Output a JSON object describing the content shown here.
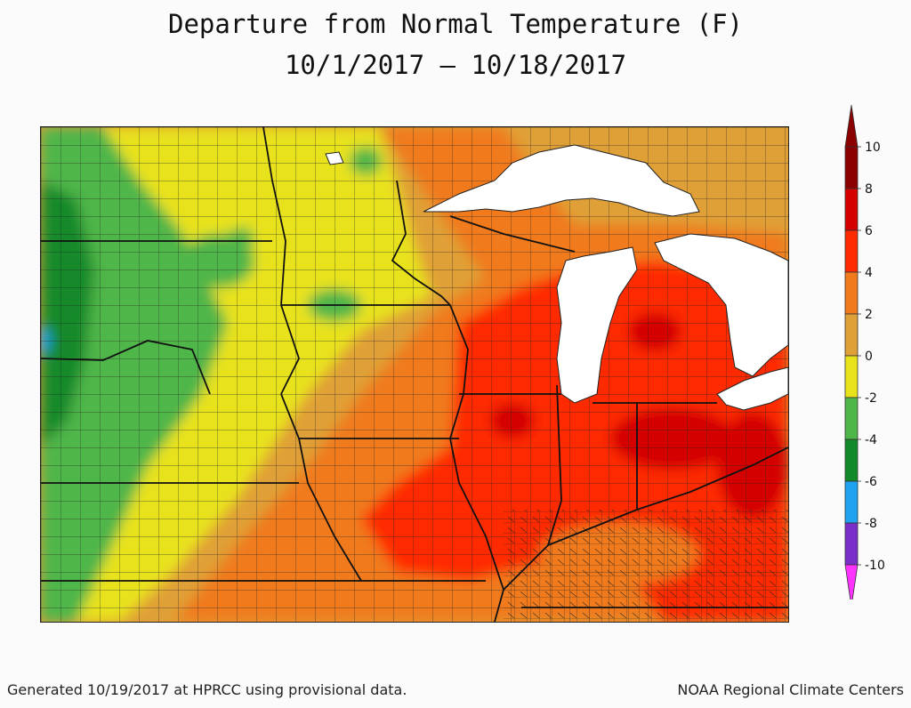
{
  "title": {
    "line1": "Departure from Normal Temperature (F)",
    "line2": "10/1/2017 – 10/18/2017"
  },
  "legend": {
    "ticks": [
      "10",
      "8",
      "6",
      "4",
      "2",
      "0",
      "-2",
      "-4",
      "-6",
      "-8",
      "-10"
    ],
    "colors": {
      "above_8": "#8b0000",
      "6_to_8": "#d40000",
      "4_to_6": "#ff2a00",
      "2_to_4": "#f07a1c",
      "0_to_2": "#e0a038",
      "neg2_to_0": "#e8e21a",
      "neg4_to_neg2": "#4fb64a",
      "neg6_to_neg4": "#138a2a",
      "neg8_to_neg6": "#1fa3f0",
      "neg10_to_neg8": "#7a2fc8",
      "below_neg10": "#ff33ff"
    }
  },
  "map": {
    "water_color": "#ffffff",
    "border_color": "#1a1a1a"
  },
  "footer": {
    "left": "Generated 10/19/2017 at HPRCC using provisional data.",
    "right": "NOAA Regional Climate Centers"
  }
}
